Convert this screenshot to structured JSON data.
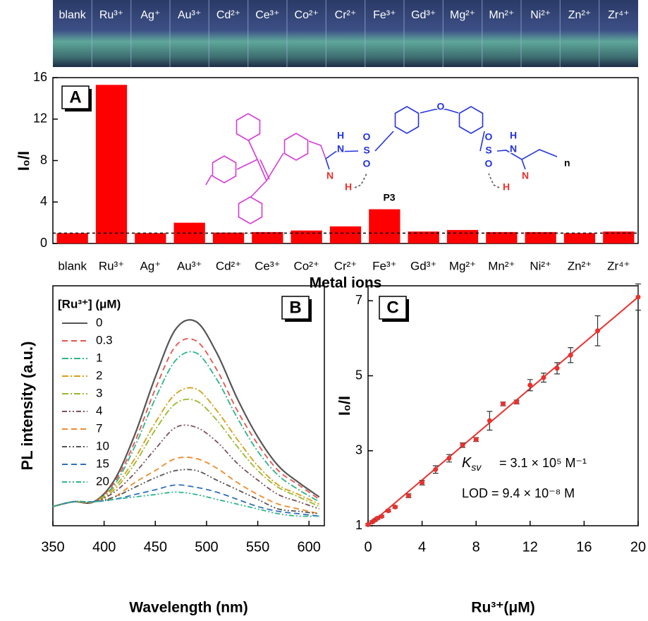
{
  "chart_data": [
    {
      "type": "bar",
      "panel_label": "A",
      "ylabel": "I₀/I",
      "xlabel": "Metal ions",
      "categories": [
        "blank",
        "Ru³⁺",
        "Ag⁺",
        "Au³⁺",
        "Cd²⁺",
        "Ce³⁺",
        "Co²⁺",
        "Cr²⁺",
        "Fe³⁺",
        "Gd³⁺",
        "Mg²⁺",
        "Mn²⁺",
        "Ni²⁺",
        "Zn²⁺",
        "Zr⁴⁺"
      ],
      "values": [
        1.0,
        15.3,
        1.0,
        2.0,
        1.05,
        1.1,
        1.25,
        1.65,
        3.3,
        1.15,
        1.3,
        1.1,
        1.1,
        1.0,
        1.15
      ],
      "color": "#ff0000",
      "reference_line": 1,
      "ylim": [
        0,
        16
      ],
      "yticks": [
        0,
        4,
        8,
        12,
        16
      ],
      "structure_label": "P3",
      "structure_repeat": "n",
      "structure_atoms": [
        "H",
        "N",
        "S",
        "O",
        "O",
        "O",
        "S",
        "O",
        "O",
        "H",
        "N",
        "N",
        "H",
        "N",
        "H"
      ]
    },
    {
      "type": "line",
      "panel_label": "B",
      "ylabel": "PL intensity (a.u.)",
      "xlabel": "Wavelength (nm)",
      "legend_title": "[Ru³⁺] (μM)",
      "x": [
        350,
        370,
        390,
        410,
        430,
        450,
        470,
        490,
        510,
        530,
        550,
        570,
        590,
        610
      ],
      "series": [
        {
          "name": "0",
          "color": "#555555",
          "dash": "none",
          "values": [
            8,
            10,
            10,
            19,
            38,
            62,
            82,
            85,
            72,
            53,
            37,
            25,
            18,
            12
          ]
        },
        {
          "name": "0.3",
          "color": "#e8534a",
          "dash": "8,5",
          "values": [
            8,
            10,
            10,
            18,
            35,
            57,
            75,
            77,
            65,
            48,
            34,
            23,
            17,
            11
          ]
        },
        {
          "name": "1",
          "color": "#2bb58a",
          "dash": "9,3,2,3",
          "values": [
            8,
            10,
            10,
            17,
            33,
            53,
            69,
            72,
            61,
            45,
            31,
            21,
            15,
            10
          ]
        },
        {
          "name": "2",
          "color": "#d4a017",
          "dash": "9,3,2,3",
          "values": [
            8,
            10,
            10,
            16,
            28,
            43,
            55,
            57,
            48,
            36,
            25,
            17,
            13,
            9
          ]
        },
        {
          "name": "3",
          "color": "#9ab82e",
          "dash": "9,3,2,3",
          "values": [
            8,
            10,
            10,
            15,
            26,
            40,
            51,
            52,
            44,
            33,
            23,
            16,
            12,
            8
          ]
        },
        {
          "name": "4",
          "color": "#7d4f5a",
          "dash": "7,3,2,3,2,3",
          "values": [
            8,
            10,
            10,
            14,
            22,
            32,
            41,
            41,
            35,
            26,
            19,
            13,
            10,
            7
          ]
        },
        {
          "name": "7",
          "color": "#f08a2c",
          "dash": "8,5",
          "values": [
            8,
            10,
            10,
            12,
            18,
            23,
            28,
            28,
            24,
            18,
            13,
            9,
            7,
            5
          ]
        },
        {
          "name": "10",
          "color": "#555555",
          "dash": "7,3,2,3,2,3",
          "values": [
            8,
            10,
            10,
            12,
            16,
            20,
            23,
            23,
            19,
            15,
            11,
            7,
            6,
            5
          ]
        },
        {
          "name": "15",
          "color": "#2f6fbe",
          "dash": "8,5",
          "values": [
            8,
            10,
            10,
            11,
            13,
            15,
            17,
            16,
            14,
            11,
            8,
            6,
            5,
            4
          ]
        },
        {
          "name": "20",
          "color": "#2bb58a",
          "dash": "7,3,2,3,2,3",
          "values": [
            8,
            10,
            10,
            11,
            12,
            13,
            14,
            13,
            11,
            9,
            7,
            5,
            4,
            4
          ]
        }
      ],
      "xlim": [
        350,
        615
      ],
      "xticks": [
        350,
        400,
        450,
        500,
        550,
        600
      ],
      "ylim": [
        0,
        100
      ]
    },
    {
      "type": "scatter",
      "panel_label": "C",
      "ylabel": "I₀/I",
      "xlabel": "Ru³⁺(μM)",
      "color": "#e8322e",
      "x": [
        0,
        0.3,
        0.5,
        0.7,
        1,
        1.5,
        2,
        3,
        4,
        5,
        6,
        7,
        8,
        9,
        10,
        11,
        12,
        13,
        14,
        15,
        17,
        20
      ],
      "values": [
        1.03,
        1.1,
        1.15,
        1.2,
        1.25,
        1.4,
        1.5,
        1.8,
        2.15,
        2.5,
        2.8,
        3.15,
        3.3,
        3.8,
        4.25,
        4.3,
        4.75,
        4.95,
        5.2,
        5.55,
        6.2,
        7.1
      ],
      "errors": [
        0.03,
        0.03,
        0.03,
        0.03,
        0.03,
        0.03,
        0.03,
        0.05,
        0.06,
        0.1,
        0.1,
        0.06,
        0.05,
        0.25,
        0.05,
        0.05,
        0.15,
        0.12,
        0.15,
        0.2,
        0.4,
        0.35
      ],
      "fit_line": {
        "x": [
          0,
          20
        ],
        "y": [
          1.0,
          7.1
        ]
      },
      "ksv_symbol": "K",
      "ksv_subscript": "sv",
      "ksv_text": "= 3.1 × 10⁵ M⁻¹",
      "lod_text": "LOD = 9.4 × 10⁻⁸ M",
      "xlim": [
        0,
        20
      ],
      "xticks": [
        0,
        4,
        8,
        12,
        16,
        20
      ],
      "ylim": [
        1,
        7.4
      ],
      "yticks": [
        1,
        3,
        5,
        7
      ]
    }
  ]
}
